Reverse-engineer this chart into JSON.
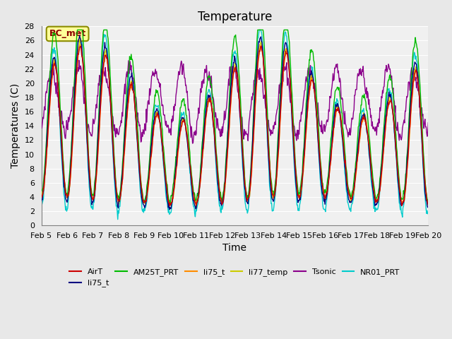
{
  "title": "Temperature",
  "xlabel": "Time",
  "ylabel": "Temperatures (C)",
  "ylim": [
    0,
    28
  ],
  "x_tick_labels": [
    "Feb 5",
    "Feb 6",
    "Feb 7",
    "Feb 8",
    "Feb 9",
    "Feb 10",
    "Feb 11",
    "Feb 12",
    "Feb 13",
    "Feb 14",
    "Feb 15",
    "Feb 16",
    "Feb 17",
    "Feb 18",
    "Feb 19",
    "Feb 20"
  ],
  "y_tick_values": [
    0,
    2,
    4,
    6,
    8,
    10,
    12,
    14,
    16,
    18,
    20,
    22,
    24,
    26,
    28
  ],
  "annotation_text": "BC_met",
  "annotation_color": "#8B0000",
  "annotation_bg": "#FFFF99",
  "annotation_edge": "#8B8B00",
  "series_colors": {
    "AirT": "#CC0000",
    "li75_t_blue": "#000080",
    "AM25T_PRT": "#00BB00",
    "li75_t_orange": "#FF8C00",
    "li77_temp": "#CCCC00",
    "Tsonic": "#8B008B",
    "NR01_PRT": "#00CCCC"
  },
  "legend_entries": [
    {
      "label": "AirT",
      "color": "#CC0000"
    },
    {
      "label": "li75_t",
      "color": "#000080"
    },
    {
      "label": "AM25T_PRT",
      "color": "#00BB00"
    },
    {
      "label": "li75_t",
      "color": "#FF8C00"
    },
    {
      "label": "li77_temp",
      "color": "#CCCC00"
    },
    {
      "label": "Tsonic",
      "color": "#8B008B"
    },
    {
      "label": "NR01_PRT",
      "color": "#00CCCC"
    }
  ],
  "bg_color": "#E8E8E8",
  "plot_bg_color": "#F0F0F0",
  "title_fontsize": 12,
  "label_fontsize": 10,
  "tick_fontsize": 8
}
